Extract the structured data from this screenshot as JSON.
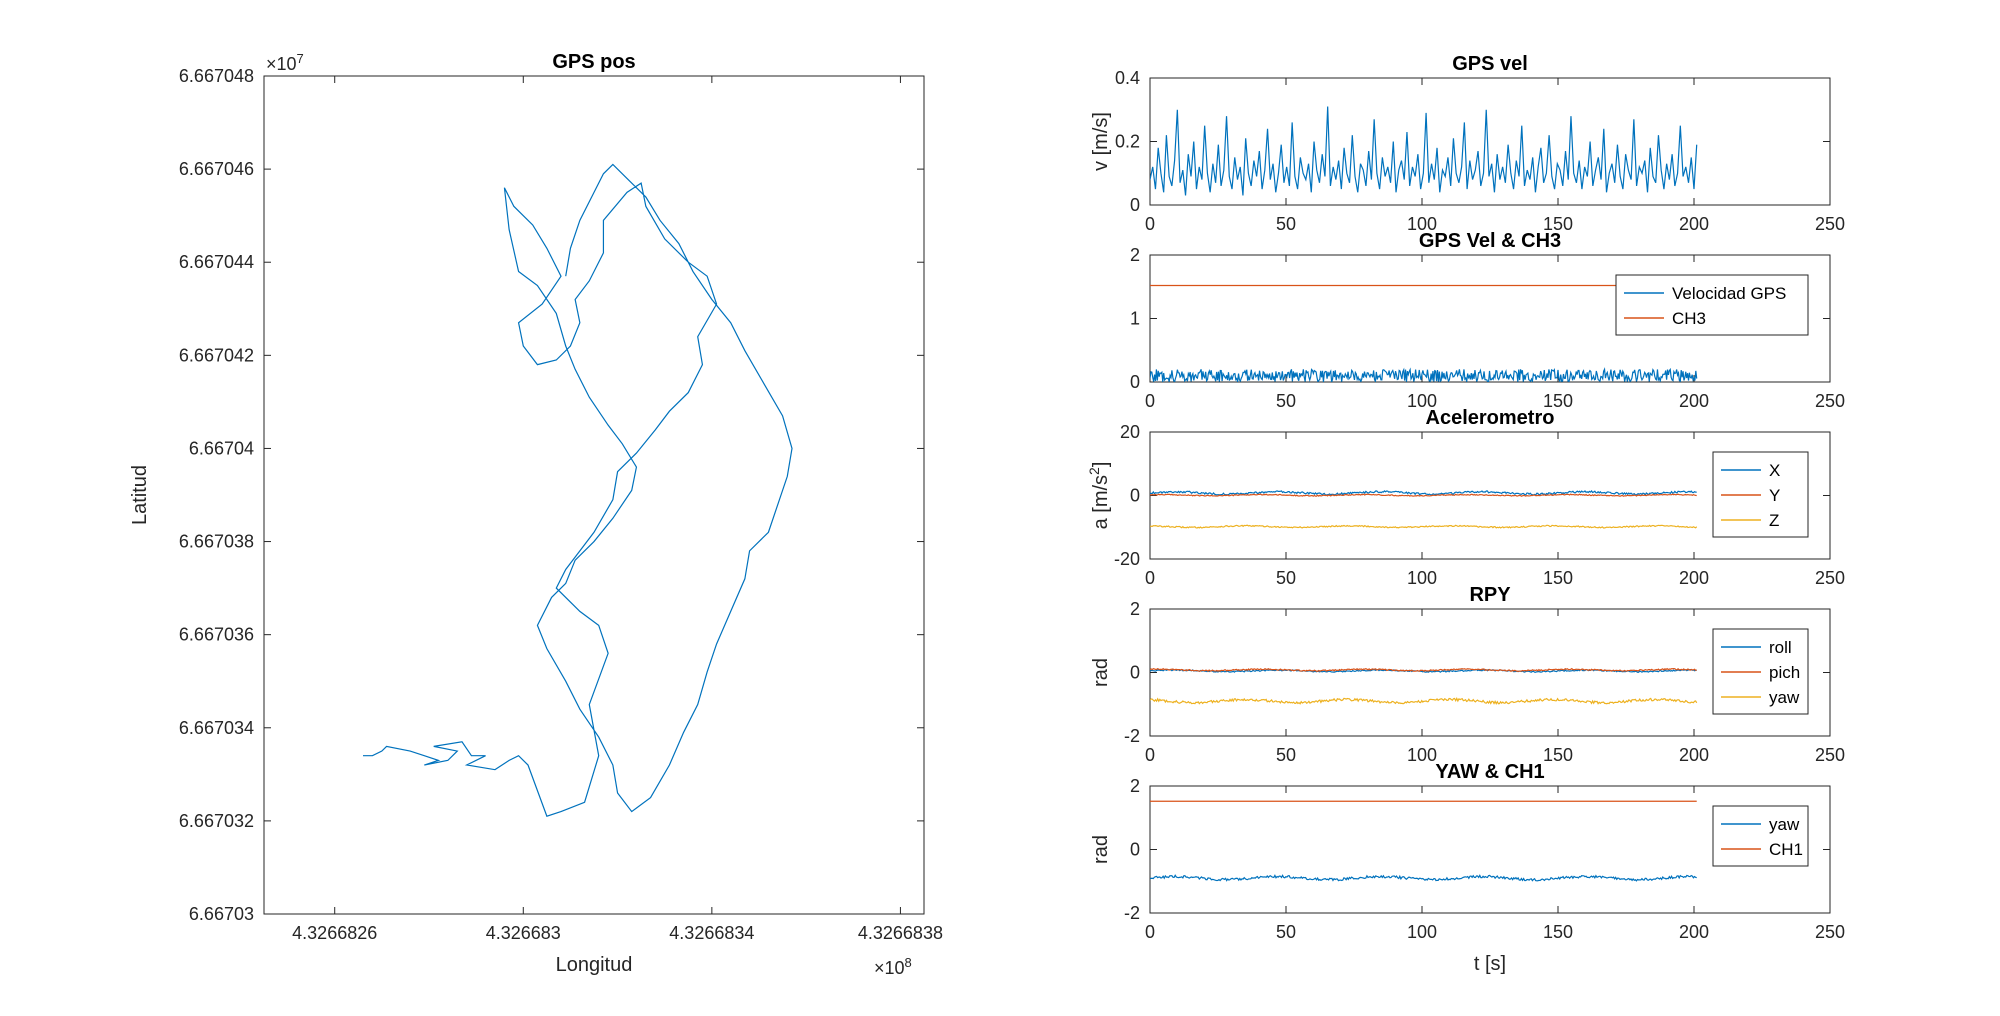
{
  "chart_data": [
    {
      "id": "gps_pos",
      "type": "line",
      "title": "GPS pos",
      "xlabel": "Longitud",
      "ylabel": "Latitud",
      "xlim": [
        4.32668245,
        4.32668385
      ],
      "ylim": [
        6.66703,
        6.667048
      ],
      "x_ticks": [
        4.3266826,
        4.326683,
        4.3266834,
        4.3266838
      ],
      "x_tick_labels": [
        "4.3266826",
        "4.326683",
        "4.3266834",
        "4.3266838"
      ],
      "y_ticks": [
        6.66703,
        6.667032,
        6.667034,
        6.667036,
        6.667038,
        6.66704,
        6.667042,
        6.667044,
        6.667046,
        6.667048
      ],
      "y_tick_labels": [
        "6.66703",
        "6.667032",
        "6.667034",
        "6.667036",
        "6.667038",
        "6.66704",
        "6.667042",
        "6.667044",
        "6.667046",
        "6.667048"
      ],
      "x_exponent": "×10",
      "x_exponent_power": "8",
      "y_exponent": "×10",
      "y_exponent_power": "7",
      "series": [
        {
          "color": "#0072BD",
          "x": [
            4.32668266,
            4.32668268,
            4.3266827,
            4.32668271,
            4.32668276,
            4.32668279,
            4.32668282,
            4.32668279,
            4.32668284,
            4.32668286,
            4.32668281,
            4.32668287,
            4.32668289,
            4.32668292,
            4.32668288,
            4.32668294,
            4.32668297,
            4.32668299,
            4.32668301,
            4.32668305,
            4.32668308,
            4.32668313,
            4.32668316,
            4.32668314,
            4.32668318,
            4.32668316,
            4.32668312,
            4.32668307,
            4.32668309,
            4.32668312,
            4.32668315,
            4.32668319,
            4.3266832,
            4.32668324,
            4.32668328,
            4.32668331,
            4.32668335,
            4.32668338,
            4.32668337,
            4.32668341,
            4.32668339,
            4.32668335,
            4.3266833,
            4.32668326,
            4.32668325,
            4.32668322,
            4.32668317,
            4.32668317,
            4.32668314,
            4.32668311,
            4.32668312,
            4.3266831,
            4.32668307,
            4.32668303,
            4.326683,
            4.32668299,
            4.32668304,
            4.32668308,
            4.32668305,
            4.32668302,
            4.32668298,
            4.32668296,
            4.32668297,
            4.32668299,
            4.32668303,
            4.32668307,
            4.32668309,
            4.32668311,
            4.32668314,
            4.32668318,
            4.32668321,
            4.32668324,
            4.32668323,
            4.32668319,
            4.32668315,
            4.32668311,
            4.32668309,
            4.32668306,
            4.32668303,
            4.32668305,
            4.32668309,
            4.32668312,
            4.32668316,
            4.32668319,
            4.3266832,
            4.32668323,
            4.32668327,
            4.32668331,
            4.32668334,
            4.32668337,
            4.32668339,
            4.32668341,
            4.32668344,
            4.32668347,
            4.32668348,
            4.32668352,
            4.32668354,
            4.32668356,
            4.32668357,
            4.32668355,
            4.32668351,
            4.32668347,
            4.32668344,
            4.3266834,
            4.32668336,
            4.32668333,
            4.32668329,
            4.32668326,
            4.32668322,
            4.32668319,
            4.32668317,
            4.32668315,
            4.32668312,
            4.3266831,
            4.32668309
          ],
          "y": [
            6.6670334,
            6.6670334,
            6.6670335,
            6.6670336,
            6.6670335,
            6.6670334,
            6.6670333,
            6.6670332,
            6.6670333,
            6.6670335,
            6.6670336,
            6.6670337,
            6.6670334,
            6.6670334,
            6.6670332,
            6.6670331,
            6.6670333,
            6.6670334,
            6.6670332,
            6.6670321,
            6.6670322,
            6.6670324,
            6.6670334,
            6.6670345,
            6.6670356,
            6.6670362,
            6.6670365,
            6.667037,
            6.6670374,
            6.6670378,
            6.6670382,
            6.6670389,
            6.6670395,
            6.6670399,
            6.6670404,
            6.6670408,
            6.6670412,
            6.6670418,
            6.6670424,
            6.6670431,
            6.6670437,
            6.667044,
            6.6670445,
            6.6670452,
            6.6670457,
            6.6670455,
            6.6670449,
            6.6670442,
            6.6670436,
            6.6670432,
            6.6670427,
            6.6670422,
            6.6670419,
            6.6670418,
            6.6670422,
            6.6670427,
            6.6670431,
            6.6670437,
            6.6670443,
            6.6670448,
            6.6670452,
            6.6670456,
            6.6670447,
            6.6670438,
            6.6670435,
            6.6670429,
            6.6670422,
            6.6670417,
            6.6670411,
            6.6670405,
            6.6670401,
            6.6670396,
            6.6670391,
            6.6670385,
            6.667038,
            6.6670376,
            6.6670371,
            6.6670368,
            6.6670362,
            6.6670357,
            6.667035,
            6.6670344,
            6.6670338,
            6.6670332,
            6.6670326,
            6.6670322,
            6.6670325,
            6.6670332,
            6.6670339,
            6.6670345,
            6.6670352,
            6.6670358,
            6.6670365,
            6.6670372,
            6.6670378,
            6.6670382,
            6.6670388,
            6.6670394,
            6.66704,
            6.6670407,
            6.6670414,
            6.6670421,
            6.6670427,
            6.6670432,
            6.6670438,
            6.6670444,
            6.6670449,
            6.6670454,
            6.6670458,
            6.6670461,
            6.6670459,
            6.6670455,
            6.6670449,
            6.6670443,
            6.6670437
          ]
        }
      ]
    },
    {
      "id": "gps_vel",
      "type": "line",
      "title": "GPS vel",
      "xlabel": "t [s]",
      "ylabel": "v [m/s]",
      "xlim": [
        0,
        250
      ],
      "ylim": [
        0,
        0.4
      ],
      "x_ticks": [
        0,
        50,
        100,
        150,
        200,
        250
      ],
      "y_ticks": [
        0,
        0.2,
        0.4
      ],
      "y_tick_labels": [
        "0",
        "0.2",
        "0.4"
      ],
      "series": [
        {
          "name": "",
          "color": "#0072BD",
          "t_start": 0,
          "t_end": 201,
          "values": [
            0.08,
            0.12,
            0.05,
            0.18,
            0.1,
            0.04,
            0.22,
            0.09,
            0.06,
            0.14,
            0.3,
            0.07,
            0.11,
            0.03,
            0.16,
            0.09,
            0.2,
            0.05,
            0.12,
            0.08,
            0.25,
            0.1,
            0.04,
            0.13,
            0.07,
            0.19,
            0.06,
            0.11,
            0.28,
            0.09,
            0.05,
            0.15,
            0.08,
            0.12,
            0.03,
            0.21,
            0.1,
            0.06,
            0.14,
            0.09,
            0.17,
            0.05,
            0.11,
            0.24,
            0.08,
            0.13,
            0.04,
            0.1,
            0.19,
            0.07,
            0.12,
            0.06,
            0.26,
            0.09,
            0.05,
            0.15,
            0.1,
            0.08,
            0.13,
            0.04,
            0.2,
            0.11,
            0.07,
            0.16,
            0.09,
            0.31,
            0.06,
            0.12,
            0.08,
            0.14,
            0.05,
            0.18,
            0.1,
            0.07,
            0.22,
            0.09,
            0.04,
            0.13,
            0.11,
            0.06,
            0.17,
            0.08,
            0.27,
            0.1,
            0.05,
            0.15,
            0.09,
            0.12,
            0.07,
            0.2,
            0.04,
            0.11,
            0.14,
            0.08,
            0.23,
            0.06,
            0.12,
            0.09,
            0.16,
            0.05,
            0.1,
            0.29,
            0.07,
            0.13,
            0.08,
            0.18,
            0.04,
            0.11,
            0.09,
            0.15,
            0.06,
            0.21,
            0.1,
            0.07,
            0.12,
            0.26,
            0.05,
            0.14,
            0.08,
            0.11,
            0.17,
            0.06,
            0.1,
            0.3,
            0.09,
            0.13,
            0.04,
            0.16,
            0.08,
            0.12,
            0.07,
            0.19,
            0.1,
            0.05,
            0.14,
            0.09,
            0.25,
            0.06,
            0.11,
            0.08,
            0.15,
            0.04,
            0.12,
            0.18,
            0.07,
            0.1,
            0.22,
            0.09,
            0.05,
            0.13,
            0.11,
            0.06,
            0.17,
            0.08,
            0.28,
            0.1,
            0.07,
            0.14,
            0.05,
            0.12,
            0.09,
            0.2,
            0.06,
            0.11,
            0.15,
            0.08,
            0.24,
            0.04,
            0.1,
            0.13,
            0.07,
            0.19,
            0.09,
            0.05,
            0.16,
            0.11,
            0.08,
            0.27,
            0.06,
            0.12,
            0.1,
            0.14,
            0.04,
            0.18,
            0.09,
            0.07,
            0.22,
            0.11,
            0.05,
            0.13,
            0.08,
            0.16,
            0.06,
            0.1,
            0.25,
            0.09,
            0.12,
            0.07,
            0.15,
            0.05,
            0.19
          ]
        }
      ]
    },
    {
      "id": "gps_vel_ch3",
      "type": "line",
      "title": "GPS Vel & CH3",
      "xlabel": "t [s]",
      "ylabel": "",
      "xlim": [
        0,
        250
      ],
      "ylim": [
        0,
        2
      ],
      "x_ticks": [
        0,
        50,
        100,
        150,
        200,
        250
      ],
      "y_ticks": [
        0,
        1,
        2
      ],
      "legend": "top-right",
      "series": [
        {
          "name": "Velocidad GPS",
          "color": "#0072BD",
          "t_start": 0,
          "t_end": 201,
          "base": 0.1,
          "amplitude": 0.2
        },
        {
          "name": "CH3",
          "color": "#D95319",
          "t_start": 0,
          "t_end": 201,
          "constant": 1.52
        }
      ]
    },
    {
      "id": "acelerometro",
      "type": "line",
      "title": "Acelerometro",
      "xlabel": "t [s]",
      "ylabel": "a [m/s",
      "ylabel_sup": "2",
      "ylabel_end": "]",
      "xlim": [
        0,
        250
      ],
      "ylim": [
        -20,
        20
      ],
      "x_ticks": [
        0,
        50,
        100,
        150,
        200,
        250
      ],
      "y_ticks": [
        -20,
        0,
        20
      ],
      "legend": "top-right",
      "series": [
        {
          "name": "X",
          "color": "#0072BD",
          "t_start": 0,
          "t_end": 201,
          "constant": 0.8,
          "noise": 0.6
        },
        {
          "name": "Y",
          "color": "#D95319",
          "t_start": 0,
          "t_end": 201,
          "constant": 0.1,
          "noise": 0.3
        },
        {
          "name": "Z",
          "color": "#EDB120",
          "t_start": 0,
          "t_end": 201,
          "constant": -9.8,
          "noise": 0.4
        }
      ]
    },
    {
      "id": "rpy",
      "type": "line",
      "title": "RPY",
      "xlabel": "t [s]",
      "ylabel": "rad",
      "xlim": [
        0,
        250
      ],
      "ylim": [
        -2,
        2
      ],
      "x_ticks": [
        0,
        50,
        100,
        150,
        200,
        250
      ],
      "y_ticks": [
        -2,
        0,
        2
      ],
      "legend": "top-right",
      "series": [
        {
          "name": "roll",
          "color": "#0072BD",
          "t_start": 0,
          "t_end": 201,
          "constant": 0.05,
          "noise": 0.04
        },
        {
          "name": "pich",
          "color": "#D95319",
          "t_start": 0,
          "t_end": 201,
          "constant": 0.08,
          "noise": 0.04
        },
        {
          "name": "yaw",
          "color": "#EDB120",
          "t_start": 0,
          "t_end": 201,
          "constant": -0.9,
          "noise": 0.08
        }
      ]
    },
    {
      "id": "yaw_ch1",
      "type": "line",
      "title": "YAW & CH1",
      "xlabel": "t [s]",
      "ylabel": "rad",
      "xlim": [
        0,
        250
      ],
      "ylim": [
        -2,
        2
      ],
      "x_ticks": [
        0,
        50,
        100,
        150,
        200,
        250
      ],
      "y_ticks": [
        -2,
        0,
        2
      ],
      "legend": "top-right",
      "series": [
        {
          "name": "yaw",
          "color": "#0072BD",
          "t_start": 0,
          "t_end": 201,
          "constant": -0.9,
          "noise": 0.08
        },
        {
          "name": "CH1",
          "color": "#D95319",
          "t_start": 0,
          "t_end": 201,
          "constant": 1.52
        }
      ]
    }
  ]
}
